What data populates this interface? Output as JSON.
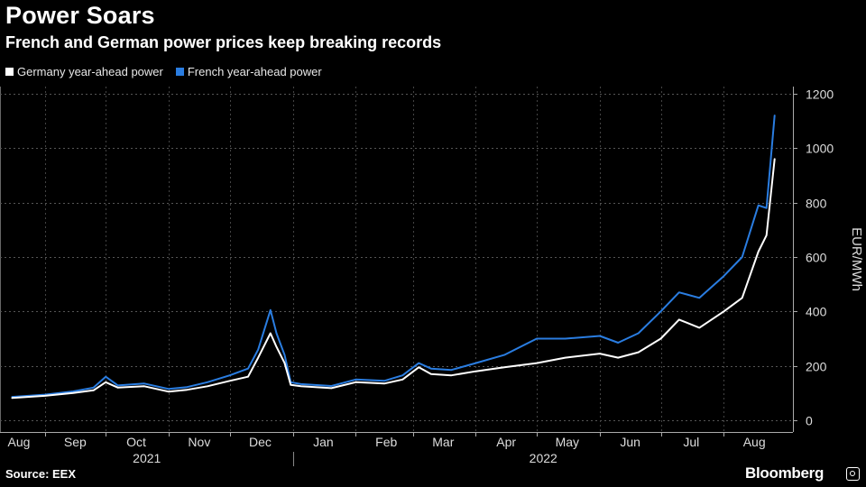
{
  "header": {
    "title": "Power Soars",
    "subtitle": "French and German power prices keep breaking records"
  },
  "footer": {
    "source": "Source: EEX",
    "brand": "Bloomberg"
  },
  "chart_data": {
    "type": "line",
    "title": "Power Soars",
    "subtitle": "French and German power prices keep breaking records",
    "xlabel": "",
    "ylabel": "EUR/MWh",
    "ylim": [
      0,
      1200
    ],
    "yticks": [
      0,
      200,
      400,
      600,
      800,
      1000,
      1200
    ],
    "grid": true,
    "legend_position": "top-left",
    "month_labels": [
      "Aug",
      "Sep",
      "Oct",
      "Nov",
      "Dec",
      "Jan",
      "Feb",
      "Mar",
      "Apr",
      "May",
      "Jun",
      "Jul",
      "Aug"
    ],
    "month_starts": [
      "2021-08-01",
      "2021-09-01",
      "2021-10-01",
      "2021-11-01",
      "2021-12-01",
      "2022-01-01",
      "2022-02-01",
      "2022-03-01",
      "2022-04-01",
      "2022-05-01",
      "2022-06-01",
      "2022-07-01",
      "2022-08-01"
    ],
    "years": [
      "2021",
      "2022"
    ],
    "series": [
      {
        "name": "Germany year-ahead power",
        "color": "#ffffff",
        "points": [
          [
            "2021-08-16",
            82
          ],
          [
            "2021-09-01",
            90
          ],
          [
            "2021-09-15",
            100
          ],
          [
            "2021-09-25",
            110
          ],
          [
            "2021-10-01",
            140
          ],
          [
            "2021-10-07",
            120
          ],
          [
            "2021-10-20",
            125
          ],
          [
            "2021-11-01",
            105
          ],
          [
            "2021-11-10",
            112
          ],
          [
            "2021-11-20",
            125
          ],
          [
            "2021-12-01",
            145
          ],
          [
            "2021-12-10",
            160
          ],
          [
            "2021-12-15",
            230
          ],
          [
            "2021-12-21",
            320
          ],
          [
            "2021-12-24",
            270
          ],
          [
            "2021-12-28",
            210
          ],
          [
            "2021-12-31",
            130
          ],
          [
            "2022-01-05",
            125
          ],
          [
            "2022-01-20",
            118
          ],
          [
            "2022-02-01",
            140
          ],
          [
            "2022-02-15",
            135
          ],
          [
            "2022-02-24",
            150
          ],
          [
            "2022-03-04",
            195
          ],
          [
            "2022-03-10",
            170
          ],
          [
            "2022-03-20",
            165
          ],
          [
            "2022-04-01",
            180
          ],
          [
            "2022-04-15",
            195
          ],
          [
            "2022-05-01",
            210
          ],
          [
            "2022-05-15",
            230
          ],
          [
            "2022-06-01",
            245
          ],
          [
            "2022-06-10",
            230
          ],
          [
            "2022-06-20",
            250
          ],
          [
            "2022-07-01",
            300
          ],
          [
            "2022-07-10",
            370
          ],
          [
            "2022-07-20",
            340
          ],
          [
            "2022-08-01",
            400
          ],
          [
            "2022-08-10",
            450
          ],
          [
            "2022-08-18",
            620
          ],
          [
            "2022-08-22",
            680
          ],
          [
            "2022-08-26",
            960
          ]
        ]
      },
      {
        "name": "French year-ahead power",
        "color": "#2a7de1",
        "points": [
          [
            "2021-08-16",
            86
          ],
          [
            "2021-09-01",
            94
          ],
          [
            "2021-09-15",
            106
          ],
          [
            "2021-09-25",
            120
          ],
          [
            "2021-10-01",
            160
          ],
          [
            "2021-10-07",
            128
          ],
          [
            "2021-10-20",
            135
          ],
          [
            "2021-11-01",
            115
          ],
          [
            "2021-11-10",
            122
          ],
          [
            "2021-11-20",
            140
          ],
          [
            "2021-12-01",
            165
          ],
          [
            "2021-12-10",
            190
          ],
          [
            "2021-12-15",
            260
          ],
          [
            "2021-12-21",
            405
          ],
          [
            "2021-12-24",
            320
          ],
          [
            "2021-12-28",
            240
          ],
          [
            "2021-12-31",
            140
          ],
          [
            "2022-01-05",
            133
          ],
          [
            "2022-01-20",
            126
          ],
          [
            "2022-02-01",
            150
          ],
          [
            "2022-02-15",
            145
          ],
          [
            "2022-02-24",
            165
          ],
          [
            "2022-03-04",
            210
          ],
          [
            "2022-03-10",
            190
          ],
          [
            "2022-03-20",
            185
          ],
          [
            "2022-04-01",
            210
          ],
          [
            "2022-04-15",
            240
          ],
          [
            "2022-05-01",
            300
          ],
          [
            "2022-05-15",
            300
          ],
          [
            "2022-06-01",
            310
          ],
          [
            "2022-06-10",
            285
          ],
          [
            "2022-06-20",
            320
          ],
          [
            "2022-07-01",
            400
          ],
          [
            "2022-07-10",
            470
          ],
          [
            "2022-07-20",
            450
          ],
          [
            "2022-08-01",
            530
          ],
          [
            "2022-08-10",
            600
          ],
          [
            "2022-08-18",
            790
          ],
          [
            "2022-08-22",
            780
          ],
          [
            "2022-08-26",
            1120
          ]
        ]
      }
    ]
  }
}
